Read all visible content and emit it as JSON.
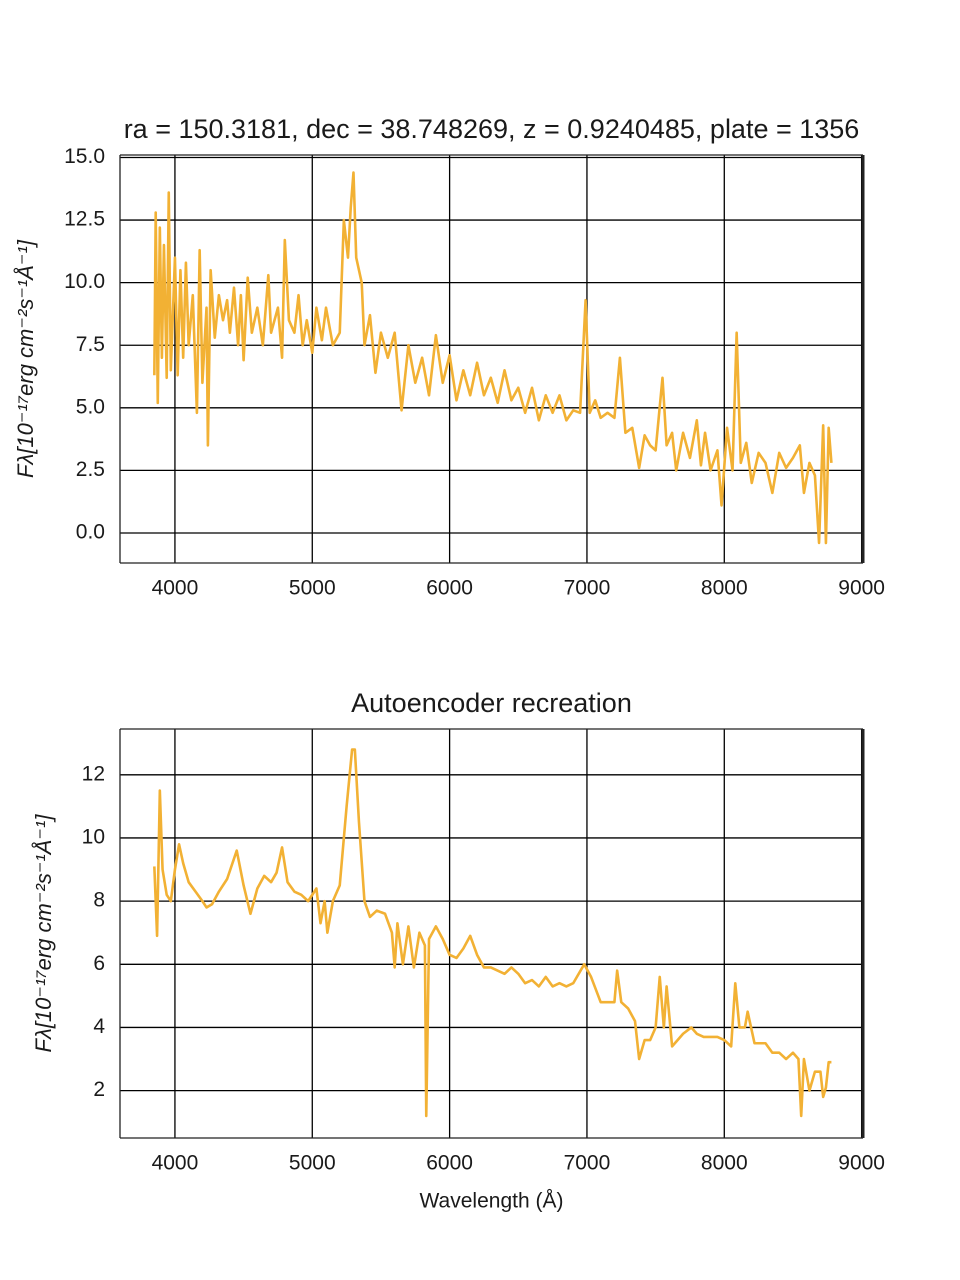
{
  "chart_data": [
    {
      "type": "line",
      "title": "ra = 150.3181, dec = 38.748269, z = 0.9240485, plate = 1356",
      "ylabel": "Fλ[10⁻¹⁷erg cm⁻²s⁻¹Å⁻¹]",
      "xlim": [
        3600,
        9010
      ],
      "ylim": [
        -1.2,
        15.1
      ],
      "grid": true,
      "xticks": [
        4000,
        5000,
        6000,
        7000,
        8000,
        9000
      ],
      "yticks": [
        {
          "value": 0,
          "label": "0.0"
        },
        2.5,
        {
          "value": 5,
          "label": "5.0"
        },
        7.5,
        {
          "value": 10,
          "label": "10.0"
        },
        12.5,
        {
          "value": 15,
          "label": "15.0"
        }
      ],
      "x": [
        3850,
        3860,
        3875,
        3890,
        3905,
        3920,
        3940,
        3955,
        3970,
        4000,
        4020,
        4040,
        4060,
        4080,
        4100,
        4130,
        4160,
        4180,
        4200,
        4230,
        4240,
        4260,
        4290,
        4320,
        4350,
        4380,
        4400,
        4430,
        4460,
        4480,
        4500,
        4530,
        4560,
        4600,
        4640,
        4680,
        4700,
        4750,
        4780,
        4800,
        4830,
        4870,
        4900,
        4930,
        4960,
        5000,
        5030,
        5070,
        5100,
        5150,
        5200,
        5230,
        5260,
        5280,
        5300,
        5320,
        5360,
        5380,
        5420,
        5460,
        5500,
        5550,
        5600,
        5650,
        5700,
        5750,
        5800,
        5850,
        5900,
        5950,
        6000,
        6050,
        6100,
        6150,
        6200,
        6250,
        6300,
        6350,
        6400,
        6450,
        6500,
        6550,
        6600,
        6650,
        6700,
        6750,
        6800,
        6850,
        6900,
        6950,
        6990,
        7020,
        7060,
        7100,
        7150,
        7200,
        7240,
        7280,
        7330,
        7380,
        7420,
        7460,
        7500,
        7550,
        7580,
        7620,
        7650,
        7700,
        7750,
        7800,
        7830,
        7860,
        7900,
        7950,
        7980,
        8020,
        8060,
        8090,
        8120,
        8160,
        8200,
        8250,
        8300,
        8350,
        8400,
        8450,
        8500,
        8550,
        8580,
        8620,
        8660,
        8690,
        8720,
        8740,
        8760,
        8780
      ],
      "series": [
        {
          "color": "#f2b134",
          "values": [
            6.3,
            12.8,
            5.2,
            12.2,
            7.0,
            11.5,
            6.2,
            13.6,
            6.5,
            11.0,
            6.3,
            10.5,
            7.0,
            10.8,
            7.5,
            9.5,
            4.8,
            11.3,
            6.0,
            9.0,
            3.5,
            10.5,
            7.8,
            9.5,
            8.5,
            9.3,
            8.0,
            9.8,
            7.5,
            9.5,
            6.9,
            10.2,
            8.0,
            9.0,
            7.5,
            10.3,
            8.0,
            9.0,
            7.0,
            11.7,
            8.5,
            8.0,
            9.5,
            7.5,
            8.5,
            7.2,
            9.0,
            7.7,
            9.0,
            7.5,
            8.0,
            12.5,
            11.0,
            13.0,
            14.4,
            11.0,
            10.0,
            7.5,
            8.7,
            6.4,
            8.0,
            7.0,
            8.0,
            4.9,
            7.5,
            6.0,
            7.0,
            5.5,
            7.9,
            6.0,
            7.1,
            5.3,
            6.5,
            5.5,
            6.8,
            5.5,
            6.2,
            5.2,
            6.5,
            5.3,
            5.8,
            4.8,
            5.8,
            4.5,
            5.5,
            4.8,
            5.5,
            4.5,
            4.9,
            4.8,
            9.3,
            4.8,
            5.3,
            4.6,
            4.8,
            4.6,
            7.0,
            4.0,
            4.2,
            2.6,
            3.9,
            3.5,
            3.3,
            6.2,
            3.5,
            4.0,
            2.5,
            4.0,
            3.0,
            4.5,
            2.7,
            4.0,
            2.5,
            3.3,
            1.1,
            4.2,
            2.5,
            8.0,
            2.8,
            3.6,
            2.0,
            3.2,
            2.8,
            1.6,
            3.2,
            2.6,
            3.0,
            3.5,
            1.6,
            2.8,
            2.3,
            -0.4,
            4.3,
            -0.4,
            4.2,
            2.8
          ]
        }
      ]
    },
    {
      "type": "line",
      "title": "Autoencoder recreation",
      "xlabel": "Wavelength (Å)",
      "ylabel": "Fλ[10⁻¹⁷erg cm⁻²s⁻¹Å⁻¹]",
      "xlim": [
        3600,
        9010
      ],
      "ylim": [
        0.5,
        13.45
      ],
      "grid": true,
      "xticks": [
        4000,
        5000,
        6000,
        7000,
        8000,
        9000
      ],
      "yticks": [
        2,
        4,
        6,
        8,
        10,
        12
      ],
      "x": [
        3850,
        3870,
        3890,
        3910,
        3940,
        3970,
        4000,
        4030,
        4060,
        4100,
        4150,
        4200,
        4230,
        4270,
        4320,
        4380,
        4450,
        4500,
        4550,
        4600,
        4650,
        4700,
        4740,
        4780,
        4820,
        4870,
        4920,
        4970,
        5030,
        5060,
        5090,
        5110,
        5150,
        5200,
        5250,
        5290,
        5310,
        5340,
        5380,
        5420,
        5470,
        5530,
        5580,
        5600,
        5620,
        5660,
        5700,
        5740,
        5780,
        5820,
        5830,
        5850,
        5900,
        5950,
        6000,
        6050,
        6100,
        6150,
        6200,
        6250,
        6300,
        6400,
        6450,
        6500,
        6550,
        6600,
        6650,
        6700,
        6750,
        6800,
        6850,
        6900,
        6980,
        7030,
        7100,
        7200,
        7220,
        7250,
        7300,
        7350,
        7380,
        7420,
        7460,
        7500,
        7530,
        7560,
        7580,
        7620,
        7660,
        7700,
        7760,
        7800,
        7850,
        7950,
        8000,
        8050,
        8080,
        8110,
        8150,
        8170,
        8220,
        8300,
        8350,
        8400,
        8450,
        8500,
        8540,
        8560,
        8580,
        8620,
        8660,
        8700,
        8720,
        8740,
        8760,
        8780
      ],
      "series": [
        {
          "color": "#f2b134",
          "values": [
            9.1,
            6.9,
            11.5,
            9.0,
            8.2,
            8.0,
            9.0,
            9.8,
            9.2,
            8.6,
            8.3,
            8.0,
            7.8,
            7.9,
            8.3,
            8.7,
            9.6,
            8.5,
            7.6,
            8.4,
            8.8,
            8.6,
            8.9,
            9.7,
            8.6,
            8.3,
            8.2,
            8.0,
            8.4,
            7.3,
            8.0,
            7.0,
            8.0,
            8.5,
            11.0,
            12.8,
            12.8,
            10.5,
            8.0,
            7.5,
            7.7,
            7.6,
            7.0,
            5.9,
            7.3,
            6.0,
            7.2,
            5.9,
            7.0,
            6.6,
            1.2,
            6.8,
            7.2,
            6.8,
            6.3,
            6.2,
            6.5,
            6.9,
            6.3,
            5.9,
            5.9,
            5.7,
            5.9,
            5.7,
            5.4,
            5.5,
            5.3,
            5.6,
            5.3,
            5.4,
            5.3,
            5.4,
            6.0,
            5.6,
            4.8,
            4.8,
            5.8,
            4.8,
            4.6,
            4.2,
            3.0,
            3.6,
            3.6,
            4.0,
            5.6,
            4.0,
            5.3,
            3.4,
            3.6,
            3.8,
            4.0,
            3.8,
            3.7,
            3.7,
            3.6,
            3.4,
            5.4,
            4.0,
            4.0,
            4.5,
            3.5,
            3.5,
            3.2,
            3.2,
            3.0,
            3.2,
            3.0,
            1.2,
            3.0,
            2.0,
            2.6,
            2.6,
            1.8,
            2.1,
            2.9,
            2.9
          ]
        }
      ]
    }
  ]
}
